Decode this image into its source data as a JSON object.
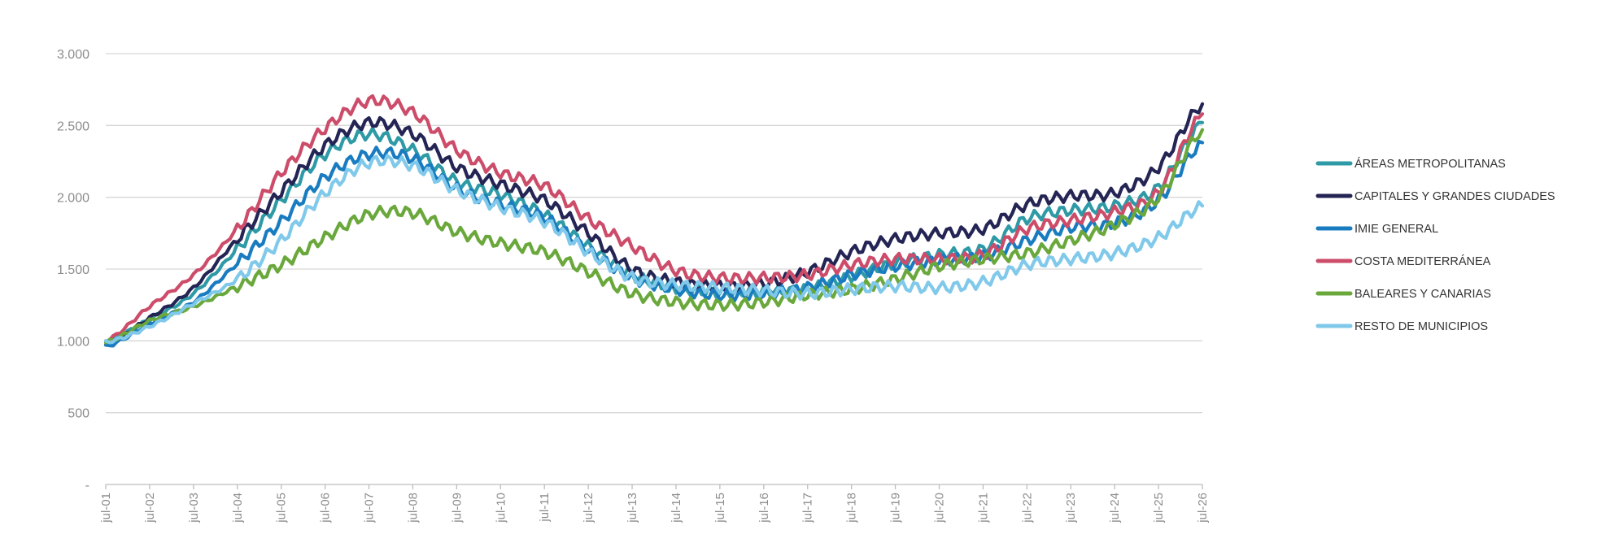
{
  "chart_data": {
    "type": "line",
    "title": "",
    "xlabel": "",
    "ylabel": "",
    "ylim": [
      0,
      3000
    ],
    "yticks": [
      0,
      500,
      1000,
      1500,
      2000,
      2500,
      3000
    ],
    "ytick_labels": [
      "-",
      "500",
      "1.000",
      "1.500",
      "2.000",
      "2.500",
      "3.000"
    ],
    "x": [
      "jul-01",
      "jul-02",
      "jul-03",
      "jul-04",
      "jul-05",
      "jul-06",
      "jul-07",
      "jul-08",
      "jul-09",
      "jul-10",
      "jul-11",
      "jul-12",
      "jul-13",
      "jul-14",
      "jul-15",
      "jul-16",
      "jul-17",
      "jul-18",
      "jul-19",
      "jul-20",
      "jul-21",
      "jul-22",
      "jul-23",
      "jul-24",
      "jul-25",
      "jul-26"
    ],
    "grid": true,
    "legend_position": "right",
    "series": [
      {
        "name": "ÁREAS METROPOLITANAS",
        "color": "#2e9aa6",
        "values": [
          1000,
          1150,
          1330,
          1640,
          1980,
          2300,
          2440,
          2330,
          2110,
          2020,
          1880,
          1660,
          1460,
          1370,
          1340,
          1340,
          1360,
          1450,
          1540,
          1600,
          1640,
          1850,
          1910,
          1940,
          2070,
          2520
        ]
      },
      {
        "name": "CAPITALES Y GRANDES CIUDADES",
        "color": "#242455",
        "values": [
          980,
          1160,
          1370,
          1710,
          2040,
          2360,
          2520,
          2440,
          2210,
          2090,
          1980,
          1750,
          1500,
          1410,
          1380,
          1400,
          1480,
          1620,
          1710,
          1750,
          1780,
          1950,
          2010,
          2030,
          2210,
          2650
        ]
      },
      {
        "name": "IMIE GENERAL",
        "color": "#1a7cc0",
        "values": [
          960,
          1120,
          1270,
          1540,
          1830,
          2140,
          2300,
          2270,
          2060,
          1950,
          1860,
          1630,
          1440,
          1360,
          1320,
          1330,
          1370,
          1460,
          1520,
          1560,
          1590,
          1700,
          1790,
          1820,
          1980,
          2380
        ]
      },
      {
        "name": "COSTA MEDITERRÁNEA",
        "color": "#cc4c6a",
        "values": [
          1000,
          1240,
          1460,
          1780,
          2170,
          2480,
          2670,
          2590,
          2330,
          2170,
          2080,
          1850,
          1660,
          1490,
          1440,
          1440,
          1460,
          1530,
          1570,
          1570,
          1600,
          1780,
          1840,
          1900,
          2040,
          2580
        ]
      },
      {
        "name": "BALEARES Y CANARIAS",
        "color": "#6aa83c",
        "values": [
          990,
          1140,
          1240,
          1380,
          1530,
          1720,
          1880,
          1890,
          1760,
          1680,
          1620,
          1480,
          1330,
          1270,
          1250,
          1270,
          1320,
          1360,
          1430,
          1520,
          1570,
          1610,
          1700,
          1810,
          2000,
          2470
        ]
      },
      {
        "name": "RESTO DE MUNICIPIOS",
        "color": "#80c9ea",
        "values": [
          990,
          1100,
          1260,
          1430,
          1700,
          2030,
          2240,
          2220,
          2050,
          1930,
          1830,
          1620,
          1440,
          1390,
          1370,
          1350,
          1330,
          1360,
          1380,
          1370,
          1410,
          1530,
          1570,
          1610,
          1720,
          1940
        ]
      }
    ]
  }
}
